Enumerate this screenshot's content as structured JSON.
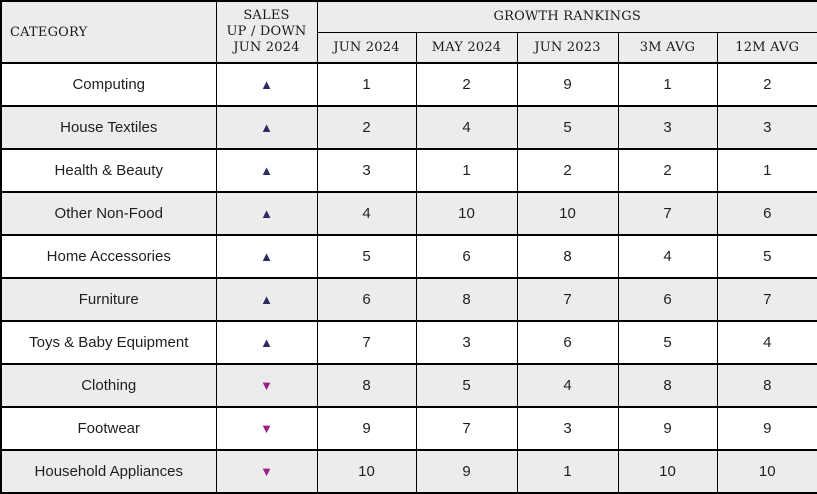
{
  "table": {
    "header": {
      "category": "CATEGORY",
      "sales_lines": [
        "SALES",
        "UP / DOWN",
        "JUN 2024"
      ],
      "growth_rankings": "GROWTH RANKINGS",
      "sub_columns": [
        "JUN 2024",
        "MAY 2024",
        "JUN 2023",
        "3M AVG",
        "12M AVG"
      ]
    },
    "rows": [
      {
        "category": "Computing",
        "direction": "up",
        "rankings": [
          "1",
          "2",
          "9",
          "1",
          "2"
        ]
      },
      {
        "category": "House Textiles",
        "direction": "up",
        "rankings": [
          "2",
          "4",
          "5",
          "3",
          "3"
        ]
      },
      {
        "category": "Health & Beauty",
        "direction": "up",
        "rankings": [
          "3",
          "1",
          "2",
          "2",
          "1"
        ]
      },
      {
        "category": "Other Non-Food",
        "direction": "up",
        "rankings": [
          "4",
          "10",
          "10",
          "7",
          "6"
        ]
      },
      {
        "category": "Home Accessories",
        "direction": "up",
        "rankings": [
          "5",
          "6",
          "8",
          "4",
          "5"
        ]
      },
      {
        "category": "Furniture",
        "direction": "up",
        "rankings": [
          "6",
          "8",
          "7",
          "6",
          "7"
        ]
      },
      {
        "category": "Toys & Baby Equipment",
        "direction": "up",
        "rankings": [
          "7",
          "3",
          "6",
          "5",
          "4"
        ]
      },
      {
        "category": "Clothing",
        "direction": "down",
        "rankings": [
          "8",
          "5",
          "4",
          "8",
          "8"
        ]
      },
      {
        "category": "Footwear",
        "direction": "down",
        "rankings": [
          "9",
          "7",
          "3",
          "9",
          "9"
        ]
      },
      {
        "category": "Household Appliances",
        "direction": "down",
        "rankings": [
          "10",
          "9",
          "1",
          "10",
          "10"
        ]
      }
    ]
  },
  "icons": {
    "up_glyph": "▲",
    "down_glyph": "▼",
    "up_meaning": "sales up",
    "down_meaning": "sales down"
  },
  "colors": {
    "up_triangle": "#2d2a64",
    "down_triangle": "#9e1e88",
    "alt_row_bg": "#ececec",
    "header_bg": "#ececec",
    "border": "#000000"
  },
  "chart_data": {
    "type": "table",
    "title": "GROWTH RANKINGS",
    "columns": [
      "CATEGORY",
      "SALES UP / DOWN JUN 2024",
      "JUN 2024",
      "MAY 2024",
      "JUN 2023",
      "3M AVG",
      "12M AVG"
    ],
    "column_span_note": "GROWTH RANKINGS header spans JUN 2024, MAY 2024, JUN 2023, 3M AVG, 12M AVG",
    "rows": [
      [
        "Computing",
        "up",
        1,
        2,
        9,
        1,
        2
      ],
      [
        "House Textiles",
        "up",
        2,
        4,
        5,
        3,
        3
      ],
      [
        "Health & Beauty",
        "up",
        3,
        1,
        2,
        2,
        1
      ],
      [
        "Other Non-Food",
        "up",
        4,
        10,
        10,
        7,
        6
      ],
      [
        "Home Accessories",
        "up",
        5,
        6,
        8,
        4,
        5
      ],
      [
        "Furniture",
        "up",
        6,
        8,
        7,
        6,
        7
      ],
      [
        "Toys & Baby Equipment",
        "up",
        7,
        3,
        6,
        5,
        4
      ],
      [
        "Clothing",
        "down",
        8,
        5,
        4,
        8,
        8
      ],
      [
        "Footwear",
        "down",
        9,
        7,
        3,
        9,
        9
      ],
      [
        "Household Appliances",
        "down",
        10,
        9,
        1,
        10,
        10
      ]
    ]
  }
}
